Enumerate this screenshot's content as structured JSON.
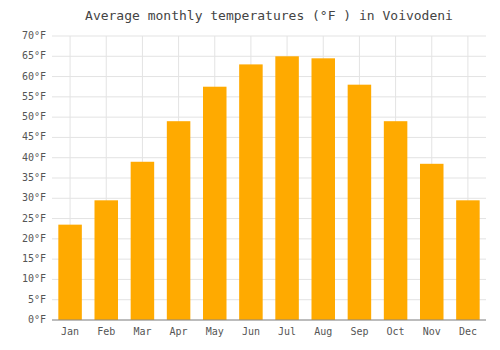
{
  "chart_data": {
    "type": "bar",
    "title": "Average monthly temperatures (°F ) in Voivodeni",
    "categories": [
      "Jan",
      "Feb",
      "Mar",
      "Apr",
      "May",
      "Jun",
      "Jul",
      "Aug",
      "Sep",
      "Oct",
      "Nov",
      "Dec"
    ],
    "values": [
      23.5,
      29.5,
      39.0,
      49.0,
      57.5,
      63.0,
      65.0,
      64.5,
      58.0,
      49.0,
      38.5,
      29.5
    ],
    "color": "#FFAA00",
    "ylim": [
      0,
      70
    ],
    "yticks": [
      {
        "value": 0,
        "label": "0°F"
      },
      {
        "value": 5,
        "label": "5°F"
      },
      {
        "value": 10,
        "label": "10°F"
      },
      {
        "value": 15,
        "label": "15°F"
      },
      {
        "value": 20,
        "label": "20°F"
      },
      {
        "value": 25,
        "label": "25°F"
      },
      {
        "value": 30,
        "label": "30°F"
      },
      {
        "value": 35,
        "label": "35°F"
      },
      {
        "value": 40,
        "label": "40°F"
      },
      {
        "value": 45,
        "label": "45°F"
      },
      {
        "value": 50,
        "label": "50°F"
      },
      {
        "value": 55,
        "label": "55°F"
      },
      {
        "value": 60,
        "label": "60°F"
      },
      {
        "value": 65,
        "label": "65°F"
      },
      {
        "value": 70,
        "label": "70°F"
      }
    ],
    "grid": true
  }
}
